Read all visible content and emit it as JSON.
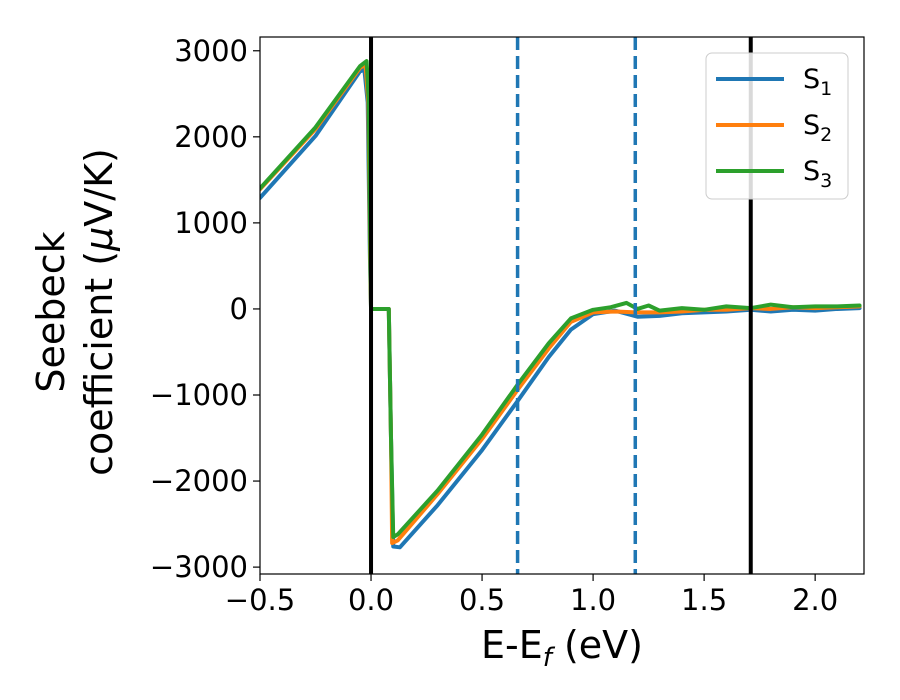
{
  "chart_data": {
    "type": "line",
    "xlabel_main": "E-E",
    "xlabel_sub": "f",
    "xlabel_unit": " (eV)",
    "ylabel_line1": "Seebeck",
    "ylabel_line2_text": "coefficient  (",
    "ylabel_line2_mu": "μ",
    "ylabel_line2_unit": "V/K)",
    "xlim": [
      -0.5,
      2.22
    ],
    "ylim": [
      -3080,
      3160
    ],
    "x_ticks": [
      -0.5,
      0.0,
      0.5,
      1.0,
      1.5,
      2.0
    ],
    "x_tick_labels": [
      "−0.5",
      "0.0",
      "0.5",
      "1.0",
      "1.5",
      "2.0"
    ],
    "y_ticks": [
      -3000,
      -2000,
      -1000,
      0,
      1000,
      2000,
      3000
    ],
    "y_tick_labels": [
      "−3000",
      "−2000",
      "−1000",
      "0",
      "1000",
      "2000",
      "3000"
    ],
    "grid": false,
    "legend_position": "top-right",
    "vlines": [
      {
        "x": 0.0,
        "style": "solid",
        "color": "#000000"
      },
      {
        "x": 1.71,
        "style": "solid",
        "color": "#000000"
      },
      {
        "x": 0.66,
        "style": "dashed",
        "color": "#1f77b4"
      },
      {
        "x": 1.19,
        "style": "dashed",
        "color": "#1f77b4"
      }
    ],
    "series": [
      {
        "name": "S",
        "subscript": "1",
        "color": "#1f77b4",
        "points": [
          [
            -0.5,
            1290
          ],
          [
            -0.25,
            2010
          ],
          [
            -0.05,
            2760
          ],
          [
            -0.03,
            2780
          ],
          [
            -0.015,
            2400
          ],
          [
            -0.005,
            600
          ],
          [
            0.0,
            0
          ],
          [
            0.08,
            0
          ],
          [
            0.09,
            -1500
          ],
          [
            0.1,
            -2760
          ],
          [
            0.13,
            -2770
          ],
          [
            0.3,
            -2280
          ],
          [
            0.5,
            -1640
          ],
          [
            0.66,
            -1070
          ],
          [
            0.8,
            -560
          ],
          [
            0.9,
            -240
          ],
          [
            1.0,
            -60
          ],
          [
            1.1,
            -20
          ],
          [
            1.2,
            -90
          ],
          [
            1.3,
            -80
          ],
          [
            1.4,
            -50
          ],
          [
            1.5,
            -40
          ],
          [
            1.6,
            -30
          ],
          [
            1.71,
            -10
          ],
          [
            1.8,
            -30
          ],
          [
            1.9,
            -10
          ],
          [
            2.0,
            -20
          ],
          [
            2.1,
            0
          ],
          [
            2.2,
            10
          ]
        ]
      },
      {
        "name": "S",
        "subscript": "2",
        "color": "#ff7f0e",
        "points": [
          [
            -0.5,
            1390
          ],
          [
            -0.25,
            2090
          ],
          [
            -0.05,
            2800
          ],
          [
            -0.025,
            2840
          ],
          [
            -0.012,
            2400
          ],
          [
            -0.004,
            600
          ],
          [
            0.0,
            0
          ],
          [
            0.08,
            0
          ],
          [
            0.09,
            -1500
          ],
          [
            0.095,
            -2720
          ],
          [
            0.12,
            -2690
          ],
          [
            0.3,
            -2150
          ],
          [
            0.5,
            -1510
          ],
          [
            0.66,
            -940
          ],
          [
            0.8,
            -460
          ],
          [
            0.9,
            -150
          ],
          [
            1.0,
            -40
          ],
          [
            1.1,
            -30
          ],
          [
            1.2,
            -40
          ],
          [
            1.3,
            -40
          ],
          [
            1.4,
            -30
          ],
          [
            1.5,
            -10
          ],
          [
            1.6,
            -10
          ],
          [
            1.71,
            10
          ],
          [
            1.8,
            0
          ],
          [
            1.9,
            20
          ],
          [
            2.0,
            10
          ],
          [
            2.1,
            20
          ],
          [
            2.2,
            30
          ]
        ]
      },
      {
        "name": "S",
        "subscript": "3",
        "color": "#2ca02c",
        "points": [
          [
            -0.5,
            1400
          ],
          [
            -0.25,
            2110
          ],
          [
            -0.05,
            2820
          ],
          [
            -0.02,
            2880
          ],
          [
            -0.01,
            2400
          ],
          [
            -0.003,
            600
          ],
          [
            0.0,
            0
          ],
          [
            0.08,
            0
          ],
          [
            0.09,
            -1500
          ],
          [
            0.1,
            -2650
          ],
          [
            0.12,
            -2620
          ],
          [
            0.3,
            -2110
          ],
          [
            0.5,
            -1460
          ],
          [
            0.66,
            -880
          ],
          [
            0.8,
            -400
          ],
          [
            0.9,
            -110
          ],
          [
            1.0,
            -10
          ],
          [
            1.08,
            20
          ],
          [
            1.15,
            70
          ],
          [
            1.2,
            0
          ],
          [
            1.25,
            40
          ],
          [
            1.3,
            -20
          ],
          [
            1.4,
            10
          ],
          [
            1.5,
            -10
          ],
          [
            1.6,
            30
          ],
          [
            1.71,
            10
          ],
          [
            1.8,
            50
          ],
          [
            1.9,
            20
          ],
          [
            2.0,
            30
          ],
          [
            2.1,
            30
          ],
          [
            2.2,
            40
          ]
        ]
      }
    ]
  }
}
